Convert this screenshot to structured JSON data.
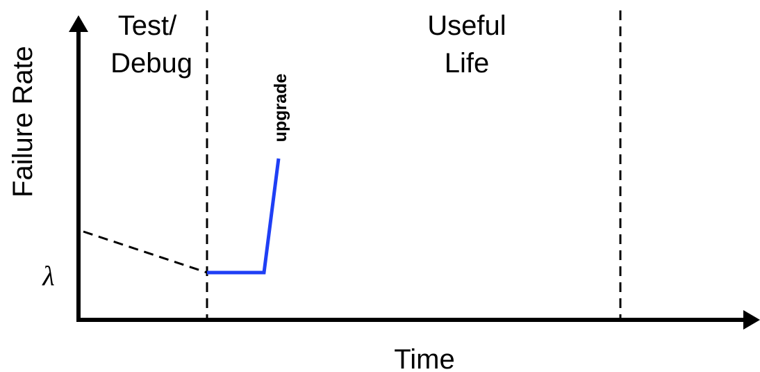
{
  "y_axis_label": "Failure Rate",
  "x_axis_label": "Time",
  "lambda_label": "λ",
  "regions": [
    {
      "lines": [
        "Test/",
        "Debug"
      ]
    },
    {
      "lines": [
        "Useful",
        "Life"
      ]
    }
  ],
  "annotation": "upgrade"
}
